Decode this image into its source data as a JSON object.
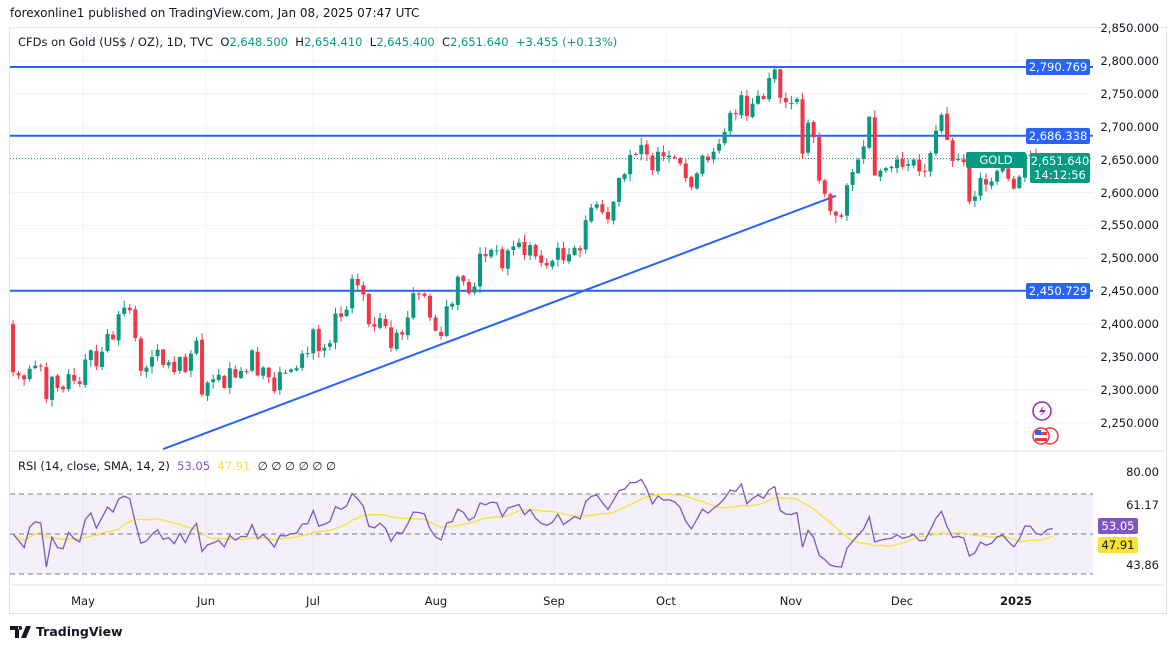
{
  "header": {
    "published": "forexonline1 published on TradingView.com, Jan 08, 2025 07:47 UTC"
  },
  "legend": {
    "symbol": "CFDs on Gold (US$ / OZ), 1D, TVC",
    "o_label": "O",
    "open": "2,648.500",
    "h_label": "H",
    "high": "2,654.410",
    "l_label": "L",
    "low": "2,645.400",
    "c_label": "C",
    "close": "2,651.640",
    "change": "+3.455 (+0.13%)"
  },
  "price_axis": [
    "2,850.000",
    "2,800.000",
    "2,750.000",
    "2,700.000",
    "2,650.000",
    "2,600.000",
    "2,550.000",
    "2,500.000",
    "2,450.000",
    "2,400.000",
    "2,350.000",
    "2,300.000",
    "2,250.000"
  ],
  "levels": [
    {
      "value": 2790.769,
      "label": "2,790.769"
    },
    {
      "value": 2686.338,
      "label": "2,686.338"
    },
    {
      "value": 2450.729,
      "label": "2,450.729"
    }
  ],
  "last": {
    "tag": "GOLD",
    "price": "2,651.640",
    "countdown": "14:12:56"
  },
  "trendline": {
    "from": {
      "date": "2024-05-29",
      "price": 2210
    },
    "to": {
      "date": "2024-11-14",
      "price": 2595
    }
  },
  "rsi": {
    "label": "RSI (14, close, SMA, 14, 2)",
    "value": "53.05",
    "sma": "47.91",
    "na": [
      "∅",
      "∅",
      "∅",
      "∅",
      "∅",
      "∅"
    ],
    "axis": [
      "80.00",
      "61.17",
      "43.86"
    ],
    "bands": [
      70,
      50,
      30
    ]
  },
  "months": [
    "May",
    "Jun",
    "Jul",
    "Aug",
    "Sep",
    "Oct",
    "Nov",
    "Dec",
    "2025"
  ],
  "footer": {
    "brand": "TradingView"
  },
  "colors": {
    "up": "#089981",
    "down": "#f23645",
    "level": "#2962ff",
    "rsi": "#7e57c2",
    "sma": "#f7e13b"
  },
  "chart_data": {
    "type": "candlestick",
    "weeks": [
      {
        "week": "2024-04-22",
        "closes": [
          2327,
          2322,
          2316,
          2332,
          2337
        ]
      },
      {
        "week": "2024-04-29",
        "closes": [
          2336,
          2286,
          2320,
          2303,
          2301
        ]
      },
      {
        "week": "2024-05-06",
        "closes": [
          2324,
          2314,
          2309,
          2346,
          2360
        ]
      },
      {
        "week": "2024-05-13",
        "closes": [
          2336,
          2358,
          2385,
          2377,
          2415
        ]
      },
      {
        "week": "2024-05-20",
        "closes": [
          2425,
          2421,
          2379,
          2329,
          2334
        ]
      },
      {
        "week": "2024-05-27",
        "closes": [
          2350,
          2361,
          2338,
          2342,
          2327
        ]
      },
      {
        "week": "2024-06-03",
        "closes": [
          2350,
          2327,
          2355,
          2375,
          2293
        ]
      },
      {
        "week": "2024-06-10",
        "closes": [
          2311,
          2316,
          2323,
          2303,
          2333
        ]
      },
      {
        "week": "2024-06-17",
        "closes": [
          2319,
          2329,
          2328,
          2360,
          2322
        ]
      },
      {
        "week": "2024-06-24",
        "closes": [
          2334,
          2319,
          2298,
          2327,
          2326
        ]
      },
      {
        "week": "2024-07-01",
        "closes": [
          2331,
          2333,
          2355,
          2356,
          2392
        ]
      },
      {
        "week": "2024-07-08",
        "closes": [
          2359,
          2364,
          2371,
          2416,
          2411
        ]
      },
      {
        "week": "2024-07-15",
        "closes": [
          2422,
          2469,
          2459,
          2445,
          2400
        ]
      },
      {
        "week": "2024-07-22",
        "closes": [
          2396,
          2409,
          2397,
          2364,
          2387
        ]
      },
      {
        "week": "2024-07-29",
        "closes": [
          2384,
          2410,
          2447,
          2446,
          2443
        ]
      },
      {
        "week": "2024-08-05",
        "closes": [
          2410,
          2390,
          2382,
          2427,
          2431
        ]
      },
      {
        "week": "2024-08-12",
        "closes": [
          2472,
          2465,
          2447,
          2457,
          2507
        ]
      },
      {
        "week": "2024-08-19",
        "closes": [
          2503,
          2513,
          2512,
          2485,
          2512
        ]
      },
      {
        "week": "2024-08-26",
        "closes": [
          2518,
          2524,
          2505,
          2520,
          2503
        ]
      },
      {
        "week": "2024-09-02",
        "closes": [
          2493,
          2489,
          2496,
          2516,
          2497
        ]
      },
      {
        "week": "2024-09-09",
        "closes": [
          2506,
          2516,
          2512,
          2558,
          2577
        ]
      },
      {
        "week": "2024-09-16",
        "closes": [
          2582,
          2570,
          2559,
          2586,
          2622
        ]
      },
      {
        "week": "2024-09-23",
        "closes": [
          2628,
          2657,
          2657,
          2672,
          2658
        ]
      },
      {
        "week": "2024-09-30",
        "closes": [
          2634,
          2662,
          2655,
          2656,
          2653
        ]
      },
      {
        "week": "2024-10-07",
        "closes": [
          2644,
          2622,
          2608,
          2629,
          2656
        ]
      },
      {
        "week": "2024-10-14",
        "closes": [
          2649,
          2662,
          2674,
          2692,
          2721
        ]
      },
      {
        "week": "2024-10-21",
        "closes": [
          2719,
          2748,
          2716,
          2735,
          2747
        ]
      },
      {
        "week": "2024-10-28",
        "closes": [
          2742,
          2774,
          2787,
          2744,
          2737
        ]
      },
      {
        "week": "2024-11-04",
        "closes": [
          2736,
          2742,
          2659,
          2706,
          2684
        ]
      },
      {
        "week": "2024-11-11",
        "closes": [
          2618,
          2598,
          2572,
          2565,
          2563
        ]
      },
      {
        "week": "2024-11-18",
        "closes": [
          2611,
          2631,
          2650,
          2670,
          2715
        ]
      },
      {
        "week": "2024-11-25",
        "closes": [
          2626,
          2633,
          2637,
          2639,
          2650
        ]
      },
      {
        "week": "2024-12-02",
        "closes": [
          2639,
          2643,
          2650,
          2632,
          2633
        ]
      },
      {
        "week": "2024-12-09",
        "closes": [
          2660,
          2694,
          2718,
          2680,
          2648
        ]
      },
      {
        "week": "2024-12-16",
        "closes": [
          2651,
          2646,
          2586,
          2594,
          2622
        ]
      },
      {
        "week": "2024-12-23",
        "closes": [
          2612,
          2617,
          2633,
          2638,
          2621
        ]
      },
      {
        "week": "2024-12-30",
        "closes": [
          2606,
          2624,
          2658,
          2657,
          2640
        ]
      },
      {
        "week": "2025-01-06",
        "closes": [
          2637,
          2649,
          2651.64
        ]
      }
    ],
    "ylim": [
      2210,
      2860
    ],
    "rsi_ylim": [
      25,
      85
    ],
    "grid": true
  }
}
